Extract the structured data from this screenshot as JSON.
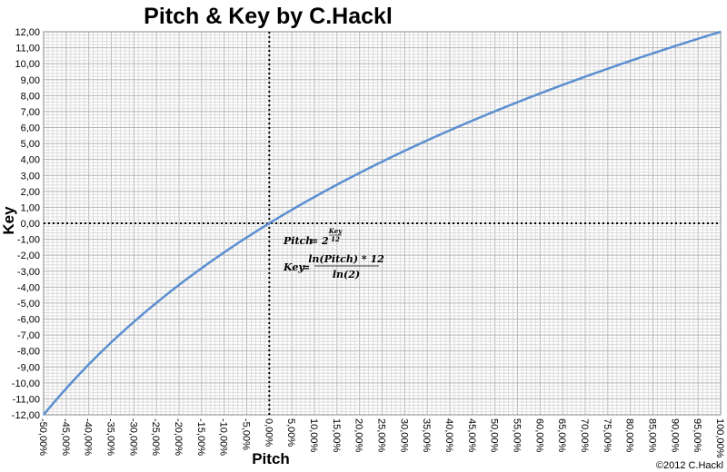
{
  "chart_data": {
    "type": "line",
    "title": "Pitch & Key by C.Hackl",
    "xlabel": "Pitch",
    "ylabel": "Key",
    "xlim": [
      -0.5,
      1.0
    ],
    "ylim": [
      -12,
      12
    ],
    "x_ticks": [
      "-50,00%",
      "-45,00%",
      "-40,00%",
      "-35,00%",
      "-30,00%",
      "-25,00%",
      "-20,00%",
      "-15,00%",
      "-10,00%",
      "-5,00%",
      "0,00%",
      "5,00%",
      "10,00%",
      "15,00%",
      "20,00%",
      "25,00%",
      "30,00%",
      "35,00%",
      "40,00%",
      "45,00%",
      "50,00%",
      "55,00%",
      "60,00%",
      "65,00%",
      "70,00%",
      "75,00%",
      "80,00%",
      "85,00%",
      "90,00%",
      "95,00%",
      "100,00%"
    ],
    "y_ticks": [
      "12,00",
      "11,00",
      "10,00",
      "9,00",
      "8,00",
      "7,00",
      "6,00",
      "5,00",
      "4,00",
      "3,00",
      "2,00",
      "1,00",
      "0,00",
      "-1,00",
      "-2,00",
      "-3,00",
      "-4,00",
      "-5,00",
      "-6,00",
      "-7,00",
      "-8,00",
      "-9,00",
      "-10,00",
      "-11,00",
      "-12,00"
    ],
    "series": [
      {
        "color": "#5b8fd1",
        "x": [
          -0.5,
          -0.45,
          -0.4,
          -0.35,
          -0.3,
          -0.25,
          -0.2,
          -0.15,
          -0.1,
          -0.05,
          0,
          0.05,
          0.1,
          0.15,
          0.2,
          0.25,
          0.3,
          0.35,
          0.4,
          0.45,
          0.5,
          0.55,
          0.6,
          0.65,
          0.7,
          0.75,
          0.8,
          0.85,
          0.9,
          0.95,
          1.0
        ],
        "y": [
          -12.0,
          -10.35,
          -8.84,
          -7.46,
          -6.17,
          -4.98,
          -3.86,
          -2.81,
          -1.82,
          -0.89,
          0,
          0.84,
          1.65,
          2.42,
          3.16,
          3.86,
          4.54,
          5.2,
          5.82,
          6.43,
          7.02,
          7.59,
          8.14,
          8.67,
          9.19,
          9.69,
          10.18,
          10.65,
          11.11,
          11.56,
          12.0
        ]
      }
    ],
    "reference_lines": {
      "x": 0,
      "y": 0,
      "style": "dotted"
    },
    "grid": true,
    "grid_minor": true
  },
  "annotations": {
    "formula1": {
      "lhs": "Pitch",
      "eq": " = 2",
      "exp_num": "Key",
      "exp_den": "12"
    },
    "formula2": {
      "lhs": "Key",
      "eq": " =",
      "num": "ln(Pitch) * 12",
      "den": "ln(2)"
    },
    "copyright": "©2012 C.Hackl"
  }
}
